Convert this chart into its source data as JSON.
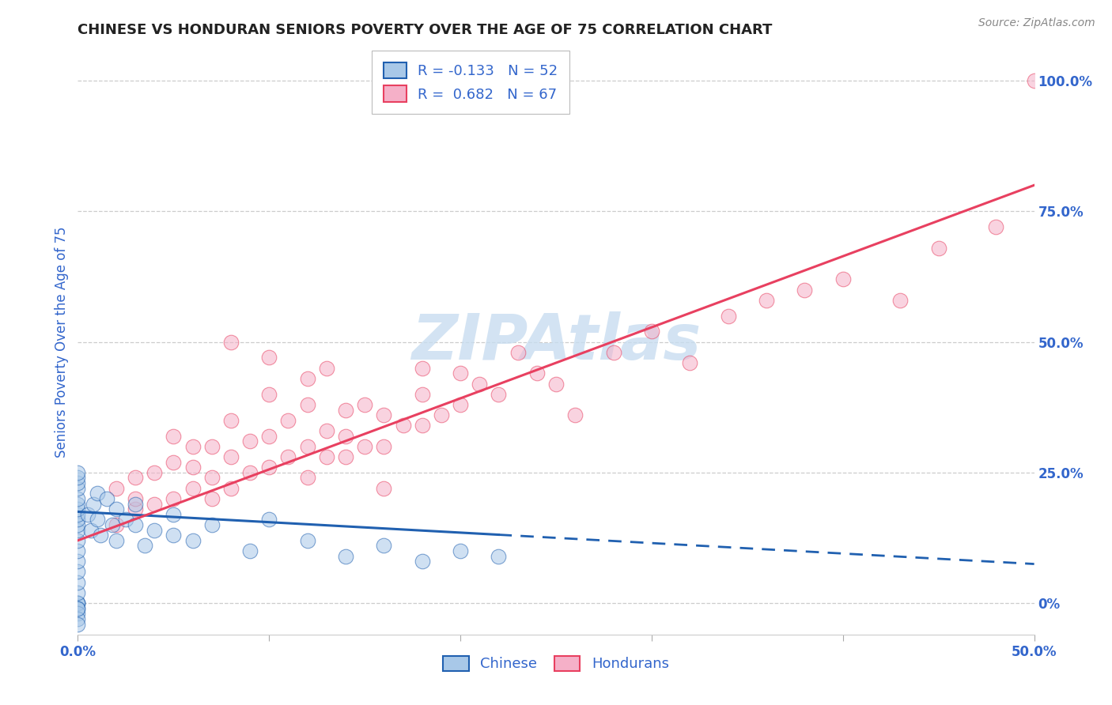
{
  "title": "CHINESE VS HONDURAN SENIORS POVERTY OVER THE AGE OF 75 CORRELATION CHART",
  "source": "Source: ZipAtlas.com",
  "ylabel": "Seniors Poverty Over the Age of 75",
  "xlim": [
    0.0,
    0.5
  ],
  "ylim": [
    -0.06,
    1.06
  ],
  "xticks": [
    0.0,
    0.1,
    0.2,
    0.3,
    0.4,
    0.5
  ],
  "xticklabels": [
    "0.0%",
    "",
    "",
    "",
    "",
    "50.0%"
  ],
  "yticks_right": [
    0.0,
    0.25,
    0.5,
    0.75,
    1.0
  ],
  "ytick_labels_right": [
    "0%",
    "25.0%",
    "50.0%",
    "75.0%",
    "100.0%"
  ],
  "chinese_R": -0.133,
  "chinese_N": 52,
  "honduran_R": 0.682,
  "honduran_N": 67,
  "chinese_color": "#a8c8e8",
  "honduran_color": "#f5b0c8",
  "chinese_line_color": "#2060b0",
  "honduran_line_color": "#e84060",
  "watermark": "ZIPAtlas",
  "watermark_color": "#c8ddf0",
  "background_color": "#ffffff",
  "grid_color": "#cccccc",
  "title_color": "#222222",
  "axis_label_color": "#3366cc",
  "chinese_x": [
    0.0,
    0.0,
    0.0,
    0.0,
    0.0,
    0.0,
    0.0,
    0.0,
    0.0,
    0.0,
    0.0,
    0.0,
    0.0,
    0.0,
    0.0,
    0.0,
    0.0,
    0.0,
    0.0,
    0.0,
    0.005,
    0.007,
    0.008,
    0.01,
    0.01,
    0.012,
    0.015,
    0.018,
    0.02,
    0.02,
    0.025,
    0.03,
    0.03,
    0.035,
    0.04,
    0.05,
    0.05,
    0.06,
    0.07,
    0.09,
    0.1,
    0.12,
    0.14,
    0.16,
    0.18,
    0.2,
    0.22,
    0.0,
    0.0,
    0.0,
    0.0,
    0.0
  ],
  "chinese_y": [
    0.0,
    0.0,
    0.0,
    0.02,
    0.04,
    0.06,
    0.08,
    0.1,
    0.12,
    0.14,
    0.15,
    0.16,
    0.17,
    0.18,
    0.19,
    0.2,
    0.22,
    0.23,
    0.24,
    0.25,
    0.17,
    0.14,
    0.19,
    0.16,
    0.21,
    0.13,
    0.2,
    0.15,
    0.18,
    0.12,
    0.16,
    0.15,
    0.19,
    0.11,
    0.14,
    0.13,
    0.17,
    0.12,
    0.15,
    0.1,
    0.16,
    0.12,
    0.09,
    0.11,
    0.08,
    0.1,
    0.09,
    -0.01,
    -0.02,
    -0.03,
    -0.04,
    -0.01
  ],
  "honduran_x": [
    0.02,
    0.02,
    0.03,
    0.03,
    0.03,
    0.04,
    0.04,
    0.05,
    0.05,
    0.05,
    0.06,
    0.06,
    0.06,
    0.07,
    0.07,
    0.07,
    0.08,
    0.08,
    0.08,
    0.09,
    0.09,
    0.1,
    0.1,
    0.1,
    0.11,
    0.11,
    0.12,
    0.12,
    0.12,
    0.13,
    0.13,
    0.13,
    0.14,
    0.14,
    0.15,
    0.15,
    0.16,
    0.16,
    0.17,
    0.18,
    0.18,
    0.19,
    0.2,
    0.2,
    0.21,
    0.22,
    0.23,
    0.24,
    0.25,
    0.26,
    0.28,
    0.3,
    0.32,
    0.34,
    0.36,
    0.38,
    0.4,
    0.43,
    0.45,
    0.48,
    0.5,
    0.08,
    0.1,
    0.12,
    0.14,
    0.16,
    0.18
  ],
  "honduran_y": [
    0.15,
    0.22,
    0.18,
    0.24,
    0.2,
    0.19,
    0.25,
    0.2,
    0.27,
    0.32,
    0.22,
    0.26,
    0.3,
    0.2,
    0.24,
    0.3,
    0.22,
    0.28,
    0.35,
    0.25,
    0.31,
    0.26,
    0.32,
    0.4,
    0.28,
    0.35,
    0.24,
    0.3,
    0.38,
    0.28,
    0.33,
    0.45,
    0.32,
    0.28,
    0.3,
    0.38,
    0.36,
    0.22,
    0.34,
    0.4,
    0.45,
    0.36,
    0.38,
    0.44,
    0.42,
    0.4,
    0.48,
    0.44,
    0.42,
    0.36,
    0.48,
    0.52,
    0.46,
    0.55,
    0.58,
    0.6,
    0.62,
    0.58,
    0.68,
    0.72,
    1.0,
    0.5,
    0.47,
    0.43,
    0.37,
    0.3,
    0.34
  ],
  "chinese_line_x_solid_end": 0.22,
  "chinese_line_x_end": 0.5,
  "honduran_line_x_start": 0.0,
  "honduran_line_x_end": 0.5
}
